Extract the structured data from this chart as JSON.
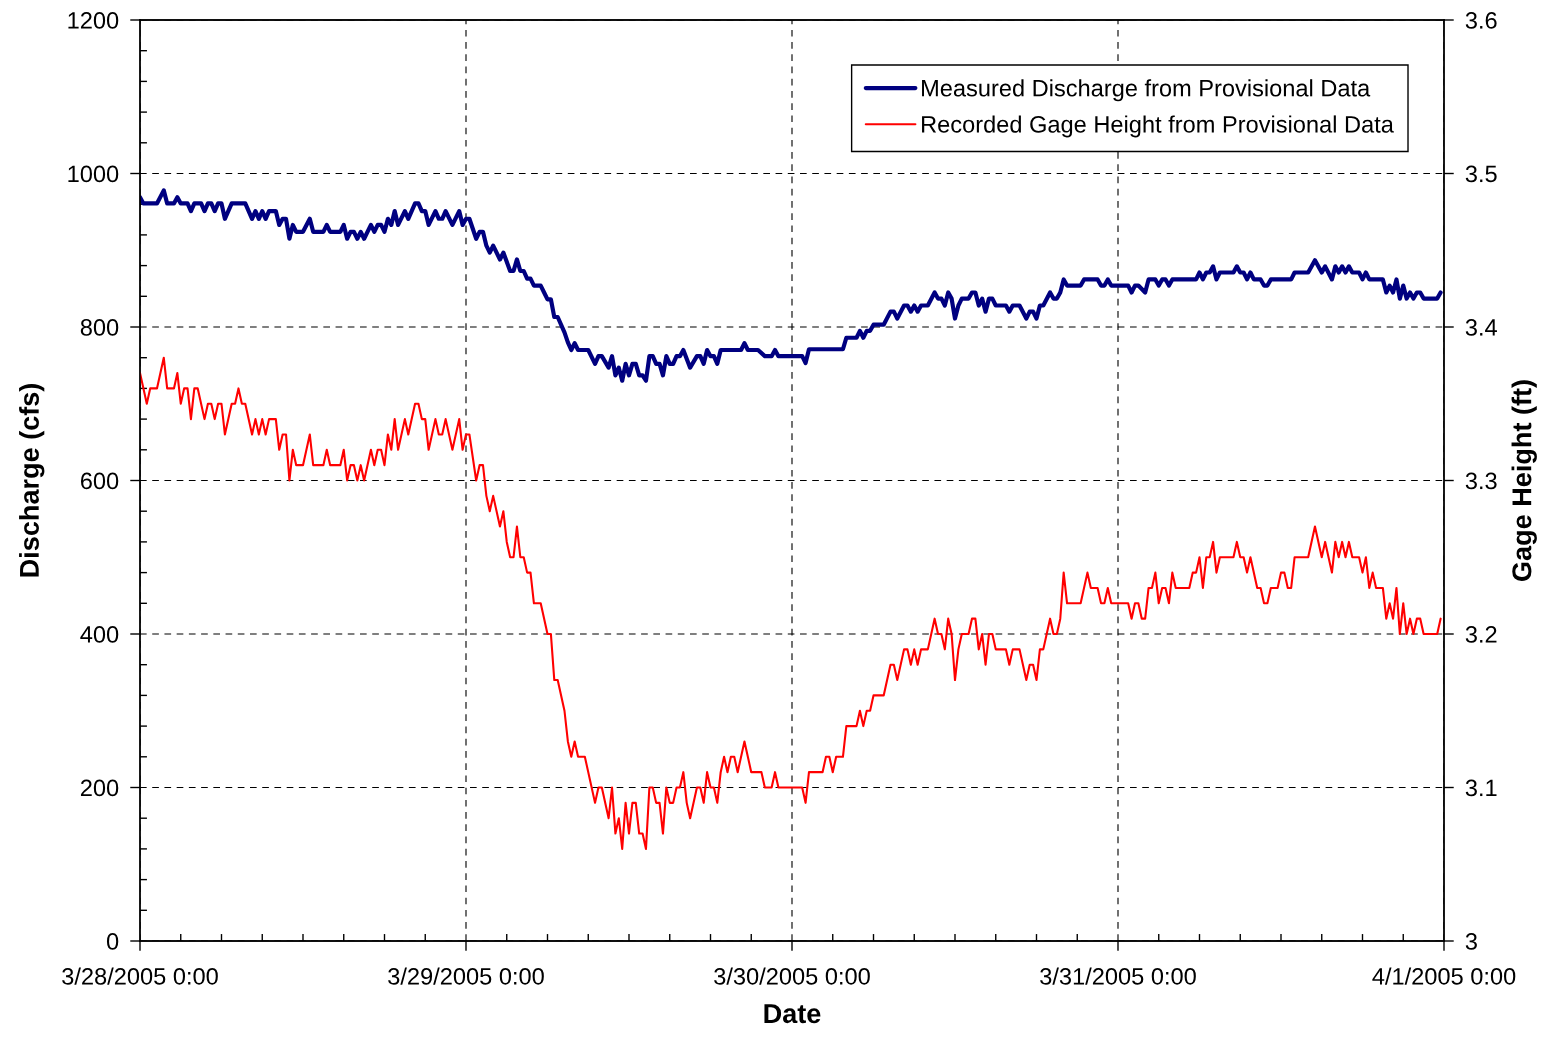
{
  "chart_data": {
    "type": "line",
    "xlabel": "Date",
    "ylabel": "Discharge (cfs)",
    "y2label": "Gage Height (ft)",
    "xlim": [
      "2005-03-28T00:00",
      "2005-04-01T00:00"
    ],
    "xticks": [
      {
        "value": "2005-03-28T00:00",
        "label": "3/28/2005 0:00"
      },
      {
        "value": "2005-03-28T03:00",
        "label": null
      },
      {
        "value": "2005-03-28T06:00",
        "label": null
      },
      {
        "value": "2005-03-28T09:00",
        "label": null
      },
      {
        "value": "2005-03-28T12:00",
        "label": null
      },
      {
        "value": "2005-03-28T15:00",
        "label": null
      },
      {
        "value": "2005-03-28T18:00",
        "label": null
      },
      {
        "value": "2005-03-28T21:00",
        "label": null
      },
      {
        "value": "2005-03-29T00:00",
        "label": "3/29/2005 0:00"
      },
      {
        "value": "2005-03-29T03:00",
        "label": null
      },
      {
        "value": "2005-03-29T06:00",
        "label": null
      },
      {
        "value": "2005-03-29T09:00",
        "label": null
      },
      {
        "value": "2005-03-29T12:00",
        "label": null
      },
      {
        "value": "2005-03-29T15:00",
        "label": null
      },
      {
        "value": "2005-03-29T18:00",
        "label": null
      },
      {
        "value": "2005-03-29T21:00",
        "label": null
      },
      {
        "value": "2005-03-30T00:00",
        "label": "3/30/2005 0:00"
      },
      {
        "value": "2005-03-30T03:00",
        "label": null
      },
      {
        "value": "2005-03-30T06:00",
        "label": null
      },
      {
        "value": "2005-03-30T09:00",
        "label": null
      },
      {
        "value": "2005-03-30T12:00",
        "label": null
      },
      {
        "value": "2005-03-30T15:00",
        "label": null
      },
      {
        "value": "2005-03-30T18:00",
        "label": null
      },
      {
        "value": "2005-03-30T21:00",
        "label": null
      },
      {
        "value": "2005-03-31T00:00",
        "label": "3/31/2005 0:00"
      },
      {
        "value": "2005-03-31T03:00",
        "label": null
      },
      {
        "value": "2005-03-31T06:00",
        "label": null
      },
      {
        "value": "2005-03-31T09:00",
        "label": null
      },
      {
        "value": "2005-03-31T12:00",
        "label": null
      },
      {
        "value": "2005-03-31T15:00",
        "label": null
      },
      {
        "value": "2005-03-31T18:00",
        "label": null
      },
      {
        "value": "2005-03-31T21:00",
        "label": null
      },
      {
        "value": "2005-04-01T00:00",
        "label": "4/1/2005 0:00"
      }
    ],
    "ylim": [
      0,
      1200
    ],
    "yticks": [
      0,
      {
        "value": 40,
        "label": null
      },
      {
        "value": 80,
        "label": null
      },
      {
        "value": 120,
        "label": null
      },
      {
        "value": 160,
        "label": null
      },
      200,
      {
        "value": 240,
        "label": null
      },
      {
        "value": 280,
        "label": null
      },
      {
        "value": 320,
        "label": null
      },
      {
        "value": 360,
        "label": null
      },
      400,
      {
        "value": 440,
        "label": null
      },
      {
        "value": 480,
        "label": null
      },
      {
        "value": 520,
        "label": null
      },
      {
        "value": 560,
        "label": null
      },
      600,
      {
        "value": 640,
        "label": null
      },
      {
        "value": 680,
        "label": null
      },
      {
        "value": 720,
        "label": null
      },
      {
        "value": 760,
        "label": null
      },
      800,
      {
        "value": 840,
        "label": null
      },
      {
        "value": 880,
        "label": null
      },
      {
        "value": 920,
        "label": null
      },
      {
        "value": 960,
        "label": null
      },
      1000,
      {
        "value": 1040,
        "label": null
      },
      {
        "value": 1080,
        "label": null
      },
      {
        "value": 1120,
        "label": null
      },
      {
        "value": 1160,
        "label": null
      },
      1200
    ],
    "y2lim": [
      3,
      3.6
    ],
    "y2ticks": [
      3,
      3.1,
      3.2,
      3.3,
      3.4,
      3.5,
      3.6
    ],
    "grid": true,
    "legend": "top right",
    "series": [
      {
        "name": "Measured Discharge from Provisional Data",
        "color": "#000080",
        "axis": "y",
        "x": [
          "2005-03-28T00:00",
          "2005-03-28T00:15",
          "2005-03-28T01:15",
          "2005-03-28T01:45",
          "2005-03-28T02:00",
          "2005-03-28T02:30",
          "2005-03-28T02:45",
          "2005-03-28T03:00",
          "2005-03-28T03:30",
          "2005-03-28T03:45",
          "2005-03-28T04:00",
          "2005-03-28T04:30",
          "2005-03-28T04:45",
          "2005-03-28T05:00",
          "2005-03-28T05:15",
          "2005-03-28T05:30",
          "2005-03-28T05:45",
          "2005-03-28T06:00",
          "2005-03-28T06:15",
          "2005-03-28T06:45",
          "2005-03-28T07:45",
          "2005-03-28T08:15",
          "2005-03-28T08:30",
          "2005-03-28T08:45",
          "2005-03-28T09:00",
          "2005-03-28T09:15",
          "2005-03-28T09:30",
          "2005-03-28T10:00",
          "2005-03-28T10:15",
          "2005-03-28T10:30",
          "2005-03-28T10:45",
          "2005-03-28T11:00",
          "2005-03-28T11:15",
          "2005-03-28T11:30",
          "2005-03-28T12:00",
          "2005-03-28T12:30",
          "2005-03-28T12:45",
          "2005-03-28T13:30",
          "2005-03-28T13:45",
          "2005-03-28T14:00",
          "2005-03-28T14:45",
          "2005-03-28T15:00",
          "2005-03-28T15:15",
          "2005-03-28T15:30",
          "2005-03-28T15:45",
          "2005-03-28T16:00",
          "2005-03-28T16:15",
          "2005-03-28T16:30",
          "2005-03-28T17:00",
          "2005-03-28T17:15",
          "2005-03-28T17:30",
          "2005-03-28T17:45",
          "2005-03-28T18:00",
          "2005-03-28T18:15",
          "2005-03-28T18:30",
          "2005-03-28T18:45",
          "2005-03-28T19:00",
          "2005-03-28T19:30",
          "2005-03-28T19:45",
          "2005-03-28T20:15",
          "2005-03-28T20:30",
          "2005-03-28T20:45",
          "2005-03-28T21:00",
          "2005-03-28T21:15",
          "2005-03-28T21:45",
          "2005-03-28T22:00",
          "2005-03-28T22:15",
          "2005-03-28T22:30",
          "2005-03-28T23:00",
          "2005-03-28T23:30",
          "2005-03-28T23:45",
          "2005-03-29T00:00",
          "2005-03-29T00:15",
          "2005-03-29T00:45",
          "2005-03-29T01:00",
          "2005-03-29T01:15",
          "2005-03-29T01:30",
          "2005-03-29T01:45",
          "2005-03-29T02:00",
          "2005-03-29T02:30",
          "2005-03-29T02:45",
          "2005-03-29T03:15",
          "2005-03-29T03:30",
          "2005-03-29T03:45",
          "2005-03-29T04:00",
          "2005-03-29T04:15",
          "2005-03-29T04:30",
          "2005-03-29T04:45",
          "2005-03-29T05:00",
          "2005-03-29T05:30",
          "2005-03-29T05:45",
          "2005-03-29T06:00",
          "2005-03-29T06:15",
          "2005-03-29T06:30",
          "2005-03-29T06:45",
          "2005-03-29T07:15",
          "2005-03-29T07:30",
          "2005-03-29T07:45",
          "2005-03-29T08:00",
          "2005-03-29T08:15",
          "2005-03-29T09:00",
          "2005-03-29T09:30",
          "2005-03-29T09:45",
          "2005-03-29T10:00",
          "2005-03-29T10:30",
          "2005-03-29T10:45",
          "2005-03-29T11:00",
          "2005-03-29T11:15",
          "2005-03-29T11:30",
          "2005-03-29T11:45",
          "2005-03-29T12:00",
          "2005-03-29T12:15",
          "2005-03-29T12:30",
          "2005-03-29T12:45",
          "2005-03-29T13:00",
          "2005-03-29T13:15",
          "2005-03-29T13:30",
          "2005-03-29T13:45",
          "2005-03-29T14:00",
          "2005-03-29T14:15",
          "2005-03-29T14:30",
          "2005-03-29T14:45",
          "2005-03-29T15:00",
          "2005-03-29T15:15",
          "2005-03-29T15:30",
          "2005-03-29T15:45",
          "2005-03-29T16:00",
          "2005-03-29T16:30",
          "2005-03-29T17:00",
          "2005-03-29T17:15",
          "2005-03-29T17:30",
          "2005-03-29T17:45",
          "2005-03-29T18:00",
          "2005-03-29T18:15",
          "2005-03-29T18:30",
          "2005-03-29T18:45",
          "2005-03-29T20:15",
          "2005-03-29T20:30",
          "2005-03-29T20:45",
          "2005-03-29T21:30",
          "2005-03-29T22:00",
          "2005-03-29T22:30",
          "2005-03-29T22:45",
          "2005-03-29T23:00",
          "2005-03-30T00:45",
          "2005-03-30T01:00",
          "2005-03-30T01:15",
          "2005-03-30T03:45",
          "2005-03-30T04:00",
          "2005-03-30T04:45",
          "2005-03-30T05:00",
          "2005-03-30T05:15",
          "2005-03-30T05:30",
          "2005-03-30T05:45",
          "2005-03-30T06:00",
          "2005-03-30T06:45",
          "2005-03-30T07:15",
          "2005-03-30T07:30",
          "2005-03-30T07:45",
          "2005-03-30T08:15",
          "2005-03-30T08:30",
          "2005-03-30T08:45",
          "2005-03-30T09:00",
          "2005-03-30T09:15",
          "2005-03-30T09:30",
          "2005-03-30T10:00",
          "2005-03-30T10:30",
          "2005-03-30T10:45",
          "2005-03-30T11:00",
          "2005-03-30T11:15",
          "2005-03-30T11:30",
          "2005-03-30T11:45",
          "2005-03-30T12:00",
          "2005-03-30T12:15",
          "2005-03-30T12:30",
          "2005-03-30T13:00",
          "2005-03-30T13:15",
          "2005-03-30T13:30",
          "2005-03-30T13:45",
          "2005-03-30T14:00",
          "2005-03-30T14:15",
          "2005-03-30T14:30",
          "2005-03-30T14:45",
          "2005-03-30T15:00",
          "2005-03-30T15:45",
          "2005-03-30T16:00",
          "2005-03-30T16:15",
          "2005-03-30T16:45",
          "2005-03-30T17:15",
          "2005-03-30T17:30",
          "2005-03-30T17:45",
          "2005-03-30T18:00",
          "2005-03-30T18:15",
          "2005-03-30T18:30",
          "2005-03-30T19:00",
          "2005-03-30T19:15",
          "2005-03-30T19:30",
          "2005-03-30T19:45",
          "2005-03-30T20:00",
          "2005-03-30T20:15",
          "2005-03-30T21:15",
          "2005-03-30T21:30",
          "2005-03-30T22:30",
          "2005-03-30T22:45",
          "2005-03-30T23:00",
          "2005-03-30T23:15",
          "2005-03-30T23:30",
          "2005-03-31T00:45",
          "2005-03-31T01:00",
          "2005-03-31T01:15",
          "2005-03-31T01:30",
          "2005-03-31T02:00",
          "2005-03-31T02:15",
          "2005-03-31T02:45",
          "2005-03-31T03:00",
          "2005-03-31T03:15",
          "2005-03-31T03:30",
          "2005-03-31T03:45",
          "2005-03-31T04:00",
          "2005-03-31T05:45",
          "2005-03-31T06:00",
          "2005-03-31T06:15",
          "2005-03-31T06:30",
          "2005-03-31T06:45",
          "2005-03-31T07:00",
          "2005-03-31T07:15",
          "2005-03-31T07:30",
          "2005-03-31T08:30",
          "2005-03-31T08:45",
          "2005-03-31T09:00",
          "2005-03-31T09:15",
          "2005-03-31T09:30",
          "2005-03-31T09:45",
          "2005-03-31T10:00",
          "2005-03-31T10:30",
          "2005-03-31T10:45",
          "2005-03-31T11:00",
          "2005-03-31T11:15",
          "2005-03-31T12:45",
          "2005-03-31T13:00",
          "2005-03-31T14:00",
          "2005-03-31T14:30",
          "2005-03-31T15:00",
          "2005-03-31T15:15",
          "2005-03-31T15:45",
          "2005-03-31T16:00",
          "2005-03-31T16:15",
          "2005-03-31T16:30",
          "2005-03-31T16:45",
          "2005-03-31T17:00",
          "2005-03-31T17:15",
          "2005-03-31T17:45",
          "2005-03-31T18:00",
          "2005-03-31T18:15",
          "2005-03-31T18:30",
          "2005-03-31T19:30",
          "2005-03-31T19:45",
          "2005-03-31T20:00",
          "2005-03-31T20:15",
          "2005-03-31T20:30",
          "2005-03-31T20:45",
          "2005-03-31T21:00",
          "2005-03-31T21:15",
          "2005-03-31T21:30",
          "2005-03-31T21:45",
          "2005-03-31T22:00",
          "2005-03-31T22:15",
          "2005-03-31T22:30",
          "2005-03-31T23:30",
          "2005-03-31T23:45"
        ],
        "values": [
          969,
          961,
          961,
          978,
          961,
          961,
          969,
          961,
          961,
          951,
          961,
          961,
          951,
          961,
          961,
          951,
          961,
          961,
          941,
          961,
          961,
          941,
          951,
          941,
          951,
          941,
          951,
          951,
          933,
          941,
          941,
          915,
          933,
          924,
          924,
          941,
          924,
          924,
          933,
          924,
          924,
          933,
          915,
          924,
          924,
          915,
          924,
          915,
          933,
          924,
          933,
          933,
          924,
          941,
          933,
          951,
          933,
          951,
          941,
          961,
          961,
          951,
          951,
          933,
          951,
          941,
          941,
          951,
          933,
          951,
          933,
          941,
          941,
          915,
          924,
          924,
          906,
          897,
          906,
          888,
          897,
          873,
          873,
          888,
          873,
          873,
          863,
          863,
          854,
          854,
          845,
          836,
          836,
          813,
          813,
          793,
          780,
          770,
          779,
          770,
          770,
          752,
          762,
          762,
          747,
          762,
          737,
          747,
          730,
          752,
          737,
          752,
          752,
          737,
          737,
          730,
          762,
          762,
          752,
          752,
          737,
          762,
          752,
          752,
          762,
          762,
          770,
          747,
          762,
          762,
          752,
          770,
          762,
          762,
          752,
          770,
          770,
          779,
          770,
          770,
          762,
          762,
          770,
          762,
          762,
          753,
          771,
          771,
          786,
          786,
          795,
          786,
          795,
          795,
          803,
          803,
          820,
          820,
          811,
          828,
          828,
          820,
          828,
          820,
          828,
          828,
          845,
          837,
          837,
          828,
          845,
          837,
          811,
          828,
          837,
          837,
          845,
          845,
          828,
          837,
          820,
          837,
          837,
          828,
          828,
          820,
          828,
          828,
          811,
          820,
          820,
          811,
          828,
          828,
          845,
          837,
          837,
          845,
          862,
          854,
          854,
          862,
          862,
          854,
          854,
          862,
          854,
          854,
          845,
          854,
          854,
          845,
          862,
          862,
          854,
          862,
          862,
          854,
          862,
          862,
          871,
          862,
          871,
          871,
          879,
          862,
          871,
          871,
          879,
          871,
          871,
          862,
          871,
          862,
          862,
          854,
          854,
          862,
          862,
          871,
          871,
          887,
          871,
          879,
          862,
          879,
          871,
          879,
          871,
          879,
          871,
          871,
          862,
          871,
          862,
          862,
          845,
          854,
          845,
          862,
          837,
          854,
          837,
          845,
          837,
          845,
          845,
          837,
          837,
          845
        ]
      },
      {
        "name": "Recorded Gage Height from Provisional Data",
        "color": "#ff0000",
        "axis": "y2",
        "x": [
          "2005-03-28T00:00",
          "2005-03-28T00:30",
          "2005-03-28T00:45",
          "2005-03-28T01:15",
          "2005-03-28T01:45",
          "2005-03-28T02:00",
          "2005-03-28T02:30",
          "2005-03-28T02:45",
          "2005-03-28T03:00",
          "2005-03-28T03:15",
          "2005-03-28T03:30",
          "2005-03-28T03:45",
          "2005-03-28T04:00",
          "2005-03-28T04:15",
          "2005-03-28T04:45",
          "2005-03-28T05:00",
          "2005-03-28T05:15",
          "2005-03-28T05:30",
          "2005-03-28T05:45",
          "2005-03-28T06:00",
          "2005-03-28T06:15",
          "2005-03-28T06:45",
          "2005-03-28T07:00",
          "2005-03-28T07:15",
          "2005-03-28T07:30",
          "2005-03-28T07:45",
          "2005-03-28T08:15",
          "2005-03-28T08:30",
          "2005-03-28T08:45",
          "2005-03-28T09:00",
          "2005-03-28T09:15",
          "2005-03-28T09:30",
          "2005-03-28T10:00",
          "2005-03-28T10:15",
          "2005-03-28T10:30",
          "2005-03-28T10:45",
          "2005-03-28T11:00",
          "2005-03-28T11:15",
          "2005-03-28T11:30",
          "2005-03-28T12:00",
          "2005-03-28T12:30",
          "2005-03-28T12:45",
          "2005-03-28T13:30",
          "2005-03-28T13:45",
          "2005-03-28T14:00",
          "2005-03-28T14:45",
          "2005-03-28T15:00",
          "2005-03-28T15:15",
          "2005-03-28T15:30",
          "2005-03-28T15:45",
          "2005-03-28T16:00",
          "2005-03-28T16:15",
          "2005-03-28T16:30",
          "2005-03-28T17:00",
          "2005-03-28T17:15",
          "2005-03-28T17:30",
          "2005-03-28T17:45",
          "2005-03-28T18:00",
          "2005-03-28T18:15",
          "2005-03-28T18:30",
          "2005-03-28T18:45",
          "2005-03-28T19:00",
          "2005-03-28T19:30",
          "2005-03-28T19:45",
          "2005-03-28T20:15",
          "2005-03-28T20:30",
          "2005-03-28T20:45",
          "2005-03-28T21:00",
          "2005-03-28T21:15",
          "2005-03-28T21:45",
          "2005-03-28T22:00",
          "2005-03-28T22:15",
          "2005-03-28T22:30",
          "2005-03-28T23:00",
          "2005-03-28T23:30",
          "2005-03-28T23:45",
          "2005-03-29T00:00",
          "2005-03-29T00:15",
          "2005-03-29T00:45",
          "2005-03-29T01:00",
          "2005-03-29T01:15",
          "2005-03-29T01:30",
          "2005-03-29T01:45",
          "2005-03-29T02:00",
          "2005-03-29T02:30",
          "2005-03-29T02:45",
          "2005-03-29T03:00",
          "2005-03-29T03:15",
          "2005-03-29T03:30",
          "2005-03-29T03:45",
          "2005-03-29T04:00",
          "2005-03-29T04:15",
          "2005-03-29T04:30",
          "2005-03-29T04:45",
          "2005-03-29T05:00",
          "2005-03-29T05:30",
          "2005-03-29T06:00",
          "2005-03-29T06:15",
          "2005-03-29T06:30",
          "2005-03-29T06:45",
          "2005-03-29T07:15",
          "2005-03-29T07:30",
          "2005-03-29T07:45",
          "2005-03-29T08:00",
          "2005-03-29T08:15",
          "2005-03-29T08:45",
          "2005-03-29T09:30",
          "2005-03-29T09:45",
          "2005-03-29T10:00",
          "2005-03-29T10:30",
          "2005-03-29T10:45",
          "2005-03-29T11:00",
          "2005-03-29T11:15",
          "2005-03-29T11:30",
          "2005-03-29T11:45",
          "2005-03-29T12:00",
          "2005-03-29T12:15",
          "2005-03-29T12:30",
          "2005-03-29T12:45",
          "2005-03-29T13:00",
          "2005-03-29T13:15",
          "2005-03-29T13:30",
          "2005-03-29T13:45",
          "2005-03-29T14:00",
          "2005-03-29T14:15",
          "2005-03-29T14:30",
          "2005-03-29T14:45",
          "2005-03-29T15:00",
          "2005-03-29T15:15",
          "2005-03-29T15:30",
          "2005-03-29T15:45",
          "2005-03-29T16:00",
          "2005-03-29T16:15",
          "2005-03-29T16:30",
          "2005-03-29T17:00",
          "2005-03-29T17:15",
          "2005-03-29T17:30",
          "2005-03-29T17:45",
          "2005-03-29T18:00",
          "2005-03-29T18:15",
          "2005-03-29T18:30",
          "2005-03-29T18:45",
          "2005-03-29T19:00",
          "2005-03-29T19:15",
          "2005-03-29T19:30",
          "2005-03-29T19:45",
          "2005-03-29T20:00",
          "2005-03-29T20:30",
          "2005-03-29T21:00",
          "2005-03-29T21:45",
          "2005-03-29T22:00",
          "2005-03-29T22:30",
          "2005-03-29T22:45",
          "2005-03-29T23:00",
          "2005-03-30T00:45",
          "2005-03-30T01:00",
          "2005-03-30T01:15",
          "2005-03-30T02:15",
          "2005-03-30T02:30",
          "2005-03-30T02:45",
          "2005-03-30T03:00",
          "2005-03-30T03:15",
          "2005-03-30T03:45",
          "2005-03-30T04:00",
          "2005-03-30T04:45",
          "2005-03-30T05:00",
          "2005-03-30T05:15",
          "2005-03-30T05:30",
          "2005-03-30T05:45",
          "2005-03-30T06:00",
          "2005-03-30T06:45",
          "2005-03-30T07:15",
          "2005-03-30T07:30",
          "2005-03-30T07:45",
          "2005-03-30T08:15",
          "2005-03-30T08:30",
          "2005-03-30T08:45",
          "2005-03-30T09:00",
          "2005-03-30T09:15",
          "2005-03-30T09:30",
          "2005-03-30T10:00",
          "2005-03-30T10:30",
          "2005-03-30T10:45",
          "2005-03-30T11:00",
          "2005-03-30T11:15",
          "2005-03-30T11:30",
          "2005-03-30T11:45",
          "2005-03-30T12:00",
          "2005-03-30T12:15",
          "2005-03-30T12:30",
          "2005-03-30T13:00",
          "2005-03-30T13:15",
          "2005-03-30T13:30",
          "2005-03-30T13:45",
          "2005-03-30T14:00",
          "2005-03-30T14:15",
          "2005-03-30T14:30",
          "2005-03-30T14:45",
          "2005-03-30T15:00",
          "2005-03-30T15:45",
          "2005-03-30T16:00",
          "2005-03-30T16:15",
          "2005-03-30T16:45",
          "2005-03-30T17:15",
          "2005-03-30T17:30",
          "2005-03-30T17:45",
          "2005-03-30T18:00",
          "2005-03-30T18:15",
          "2005-03-30T18:30",
          "2005-03-30T19:00",
          "2005-03-30T19:15",
          "2005-03-30T19:30",
          "2005-03-30T19:45",
          "2005-03-30T20:00",
          "2005-03-30T20:15",
          "2005-03-30T21:15",
          "2005-03-30T21:45",
          "2005-03-30T22:00",
          "2005-03-30T22:30",
          "2005-03-30T22:45",
          "2005-03-30T23:00",
          "2005-03-30T23:15",
          "2005-03-30T23:30",
          "2005-03-31T00:45",
          "2005-03-31T01:00",
          "2005-03-31T01:15",
          "2005-03-31T01:30",
          "2005-03-31T01:45",
          "2005-03-31T02:00",
          "2005-03-31T02:15",
          "2005-03-31T02:30",
          "2005-03-31T02:45",
          "2005-03-31T03:00",
          "2005-03-31T03:15",
          "2005-03-31T03:30",
          "2005-03-31T03:45",
          "2005-03-31T04:00",
          "2005-03-31T04:15",
          "2005-03-31T05:15",
          "2005-03-31T05:30",
          "2005-03-31T05:45",
          "2005-03-31T06:00",
          "2005-03-31T06:15",
          "2005-03-31T06:30",
          "2005-03-31T06:45",
          "2005-03-31T07:00",
          "2005-03-31T07:15",
          "2005-03-31T07:30",
          "2005-03-31T08:30",
          "2005-03-31T08:45",
          "2005-03-31T09:00",
          "2005-03-31T09:15",
          "2005-03-31T09:30",
          "2005-03-31T09:45",
          "2005-03-31T10:15",
          "2005-03-31T10:30",
          "2005-03-31T10:45",
          "2005-03-31T11:00",
          "2005-03-31T11:15",
          "2005-03-31T11:45",
          "2005-03-31T12:00",
          "2005-03-31T12:15",
          "2005-03-31T12:30",
          "2005-03-31T12:45",
          "2005-03-31T13:00",
          "2005-03-31T14:00",
          "2005-03-31T14:30",
          "2005-03-31T15:00",
          "2005-03-31T15:15",
          "2005-03-31T15:45",
          "2005-03-31T16:00",
          "2005-03-31T16:15",
          "2005-03-31T16:30",
          "2005-03-31T16:45",
          "2005-03-31T17:00",
          "2005-03-31T17:15",
          "2005-03-31T17:45",
          "2005-03-31T18:00",
          "2005-03-31T18:15",
          "2005-03-31T18:30",
          "2005-03-31T18:45",
          "2005-03-31T19:00",
          "2005-03-31T19:30",
          "2005-03-31T19:45",
          "2005-03-31T20:00",
          "2005-03-31T20:15",
          "2005-03-31T20:30",
          "2005-03-31T20:45",
          "2005-03-31T21:00",
          "2005-03-31T21:15",
          "2005-03-31T21:30",
          "2005-03-31T21:45",
          "2005-03-31T22:00",
          "2005-03-31T22:15",
          "2005-03-31T22:30",
          "2005-03-31T23:30",
          "2005-03-31T23:45"
        ],
        "values": [
          3.37,
          3.35,
          3.36,
          3.36,
          3.38,
          3.36,
          3.36,
          3.37,
          3.35,
          3.36,
          3.36,
          3.34,
          3.36,
          3.36,
          3.34,
          3.35,
          3.35,
          3.34,
          3.35,
          3.35,
          3.33,
          3.35,
          3.35,
          3.36,
          3.35,
          3.35,
          3.33,
          3.34,
          3.33,
          3.34,
          3.33,
          3.34,
          3.34,
          3.32,
          3.33,
          3.33,
          3.3,
          3.32,
          3.31,
          3.31,
          3.33,
          3.31,
          3.31,
          3.32,
          3.31,
          3.31,
          3.32,
          3.3,
          3.31,
          3.31,
          3.3,
          3.31,
          3.3,
          3.32,
          3.31,
          3.32,
          3.32,
          3.31,
          3.33,
          3.32,
          3.34,
          3.32,
          3.34,
          3.33,
          3.35,
          3.35,
          3.34,
          3.34,
          3.32,
          3.34,
          3.33,
          3.33,
          3.34,
          3.32,
          3.34,
          3.32,
          3.33,
          3.33,
          3.3,
          3.31,
          3.31,
          3.29,
          3.28,
          3.29,
          3.27,
          3.28,
          3.26,
          3.25,
          3.25,
          3.27,
          3.25,
          3.25,
          3.24,
          3.24,
          3.22,
          3.22,
          3.2,
          3.2,
          3.17,
          3.17,
          3.15,
          3.13,
          3.12,
          3.13,
          3.12,
          3.12,
          3.09,
          3.1,
          3.1,
          3.08,
          3.1,
          3.07,
          3.08,
          3.06,
          3.09,
          3.07,
          3.09,
          3.09,
          3.07,
          3.07,
          3.06,
          3.1,
          3.1,
          3.09,
          3.09,
          3.07,
          3.1,
          3.09,
          3.09,
          3.1,
          3.1,
          3.11,
          3.09,
          3.08,
          3.1,
          3.1,
          3.09,
          3.11,
          3.1,
          3.1,
          3.09,
          3.11,
          3.12,
          3.11,
          3.12,
          3.12,
          3.11,
          3.13,
          3.11,
          3.11,
          3.1,
          3.1,
          3.11,
          3.1,
          3.1,
          3.09,
          3.11,
          3.11,
          3.12,
          3.12,
          3.11,
          3.12,
          3.12,
          3.14,
          3.14,
          3.15,
          3.14,
          3.15,
          3.15,
          3.16,
          3.16,
          3.18,
          3.18,
          3.17,
          3.19,
          3.19,
          3.18,
          3.19,
          3.18,
          3.19,
          3.19,
          3.21,
          3.2,
          3.2,
          3.19,
          3.21,
          3.2,
          3.17,
          3.19,
          3.2,
          3.2,
          3.21,
          3.21,
          3.19,
          3.2,
          3.18,
          3.2,
          3.2,
          3.19,
          3.19,
          3.18,
          3.19,
          3.19,
          3.17,
          3.18,
          3.18,
          3.17,
          3.19,
          3.19,
          3.21,
          3.2,
          3.2,
          3.21,
          3.24,
          3.22,
          3.22,
          3.24,
          3.23,
          3.23,
          3.22,
          3.22,
          3.23,
          3.22,
          3.22,
          3.21,
          3.22,
          3.22,
          3.21,
          3.21,
          3.23,
          3.23,
          3.24,
          3.22,
          3.23,
          3.23,
          3.22,
          3.24,
          3.23,
          3.23,
          3.24,
          3.24,
          3.25,
          3.23,
          3.25,
          3.25,
          3.26,
          3.24,
          3.25,
          3.25,
          3.26,
          3.25,
          3.25,
          3.24,
          3.25,
          3.23,
          3.23,
          3.22,
          3.22,
          3.23,
          3.23,
          3.24,
          3.24,
          3.23,
          3.23,
          3.25,
          3.25,
          3.27,
          3.25,
          3.26,
          3.24,
          3.26,
          3.25,
          3.26,
          3.25,
          3.26,
          3.25,
          3.25,
          3.24,
          3.25,
          3.23,
          3.24,
          3.23,
          3.23,
          3.21,
          3.22,
          3.21,
          3.23,
          3.2,
          3.22,
          3.2,
          3.21,
          3.2,
          3.21,
          3.21,
          3.2,
          3.2,
          3.21
        ]
      }
    ]
  }
}
